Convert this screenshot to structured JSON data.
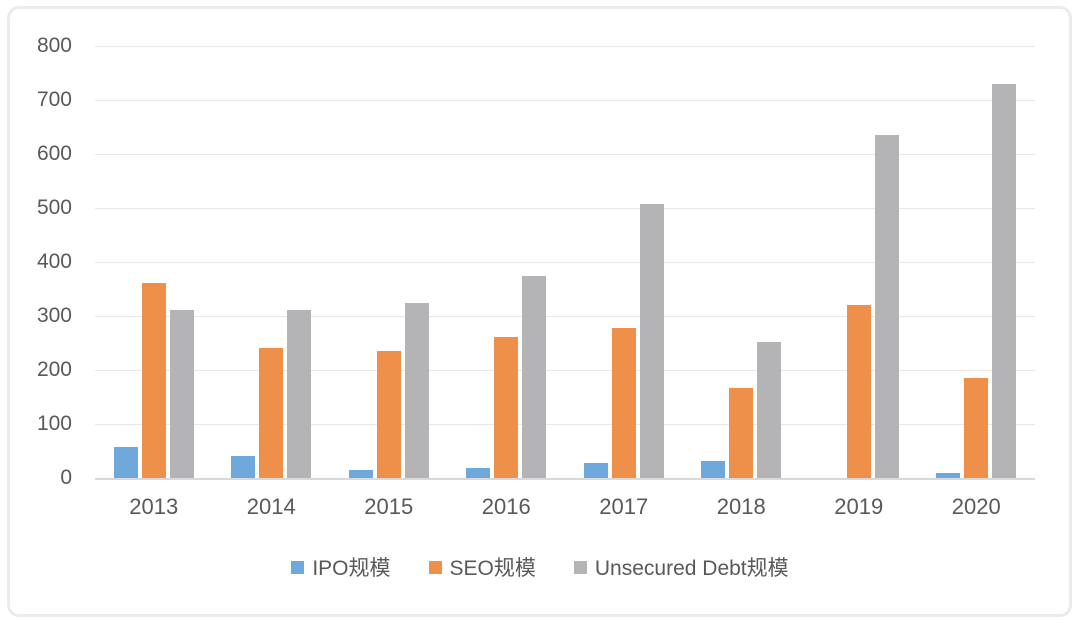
{
  "chart_data": {
    "type": "bar",
    "title": "",
    "xlabel": "",
    "ylabel": "",
    "categories": [
      "2013",
      "2014",
      "2015",
      "2016",
      "2017",
      "2018",
      "2019",
      "2020"
    ],
    "series": [
      {
        "name": "IPO规模",
        "color": "#6fa9db",
        "values": [
          57,
          41,
          14,
          18,
          27,
          32,
          0,
          9
        ]
      },
      {
        "name": "SEO规模",
        "color": "#ee8f4a",
        "values": [
          362,
          241,
          236,
          262,
          278,
          167,
          321,
          185
        ]
      },
      {
        "name": "Unsecured Debt规模",
        "color": "#b4b4b7",
        "values": [
          311,
          311,
          325,
          374,
          508,
          252,
          636,
          729
        ]
      }
    ],
    "ylim": [
      0,
      800
    ],
    "yticks": [
      0,
      100,
      200,
      300,
      400,
      500,
      600,
      700,
      800
    ],
    "grid": true,
    "legend_position": "bottom"
  },
  "style": {
    "grid_color": "#e8e8e8",
    "axis_line_color": "#d9d9d9",
    "tick_text_color": "#595959",
    "frame_border_color": "#ebebeb",
    "background": "#ffffff"
  }
}
